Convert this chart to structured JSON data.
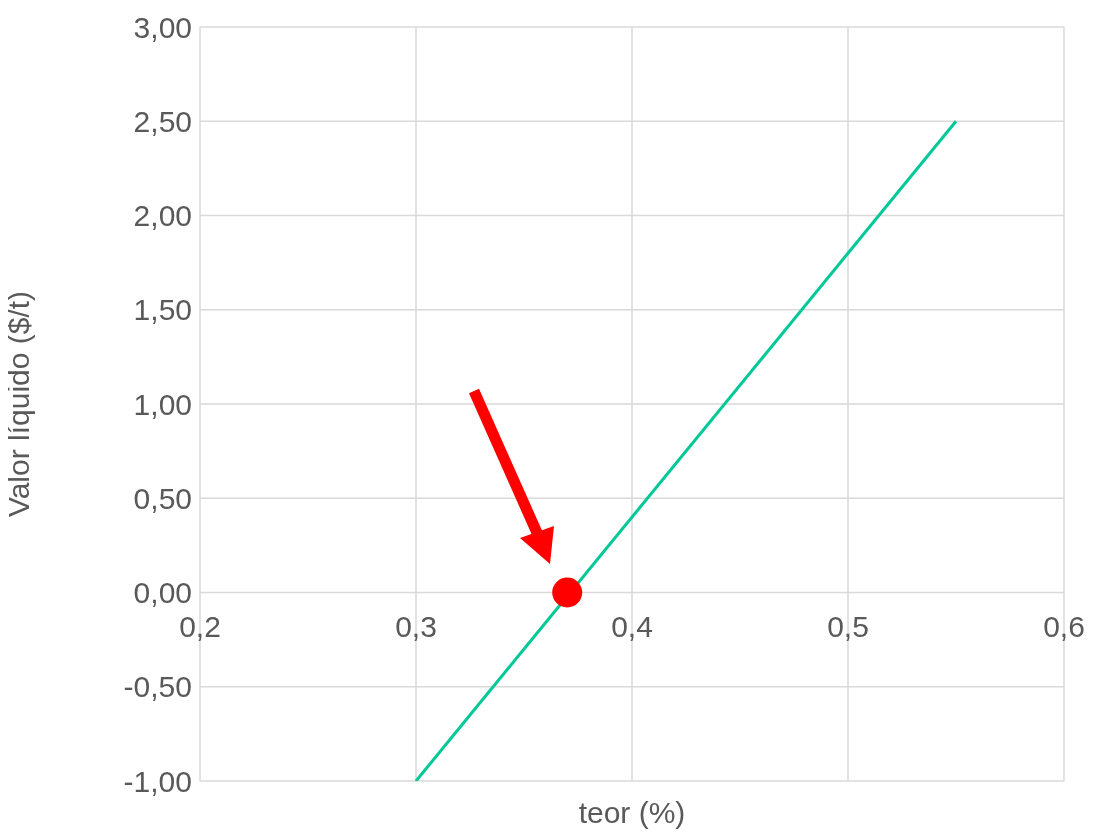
{
  "chart_data": {
    "type": "line",
    "xlabel": "teor (%)",
    "ylabel": "Valor líquido ($/t)",
    "xlim": [
      0.2,
      0.6
    ],
    "xticks": [
      {
        "value": 0.2,
        "label": "0,2"
      },
      {
        "value": 0.3,
        "label": "0,3"
      },
      {
        "value": 0.4,
        "label": "0,4"
      },
      {
        "value": 0.5,
        "label": "0,5"
      },
      {
        "value": 0.6,
        "label": "0,6"
      }
    ],
    "ylim": [
      -1,
      3
    ],
    "yticks": [
      {
        "value": -1,
        "label": "-1,00"
      },
      {
        "value": -0.5,
        "label": "-0,50"
      },
      {
        "value": 0,
        "label": "0,00"
      },
      {
        "value": 0.5,
        "label": "0,50"
      },
      {
        "value": 1,
        "label": "1,00"
      },
      {
        "value": 1.5,
        "label": "1,50"
      },
      {
        "value": 2,
        "label": "2,00"
      },
      {
        "value": 2.5,
        "label": "2,50"
      },
      {
        "value": 3,
        "label": "3,00"
      }
    ],
    "grid": true,
    "series": [
      {
        "type": "line",
        "color": "#00c896",
        "x": [
          0.3,
          0.55
        ],
        "values": [
          -1,
          2.5
        ]
      },
      {
        "type": "scatter",
        "color": "#ff0000",
        "marker": "circle",
        "x": [
          0.37
        ],
        "values": [
          0
        ]
      }
    ]
  }
}
